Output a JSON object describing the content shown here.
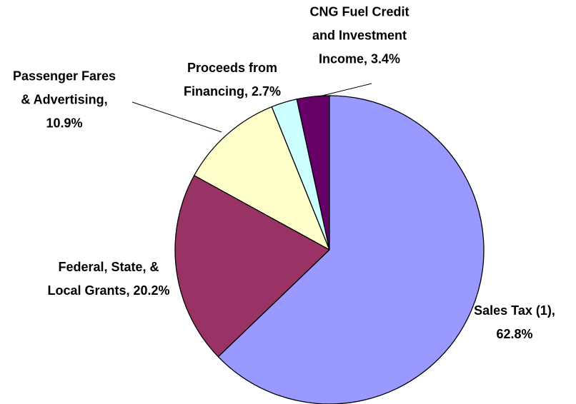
{
  "chart_data": {
    "type": "pie",
    "categories": [
      "Sales Tax (1),",
      "Federal, State, & Local Grants,",
      "Passenger Fares & Advertising,",
      "Proceeds from Financing,",
      "CNG Fuel Credit and Investment Income,"
    ],
    "values": [
      62.8,
      20.2,
      10.9,
      2.7,
      3.4
    ],
    "value_labels": [
      "62.8%",
      "20.2%",
      "10.9%",
      "2.7%",
      "3.4%"
    ],
    "colors": [
      "#9999ff",
      "#993366",
      "#ffffcc",
      "#ccffff",
      "#660066"
    ]
  }
}
